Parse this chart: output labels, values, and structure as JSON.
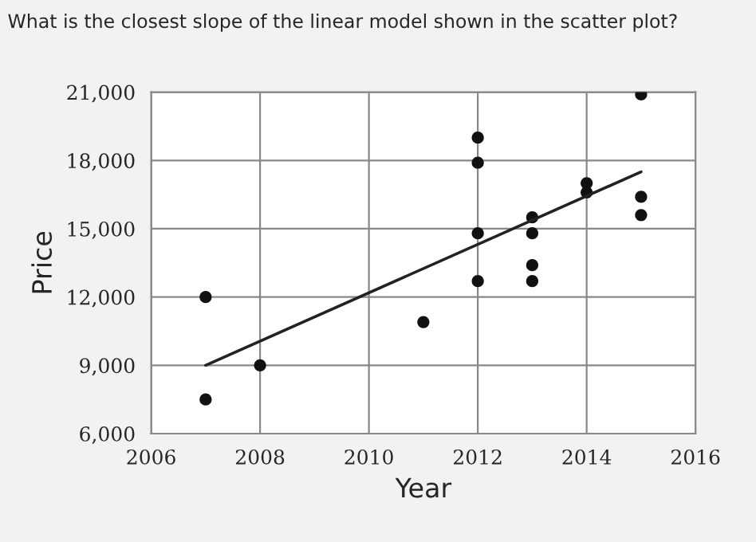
{
  "chart_data": {
    "type": "scatter",
    "title": "What is the closest slope of the linear model shown in the scatter plot?",
    "xlabel": "Year",
    "ylabel": "Price",
    "xlim": [
      2006,
      2016
    ],
    "xticks": [
      2006,
      2008,
      2010,
      2012,
      2014,
      2016
    ],
    "ylim": [
      6000,
      21000
    ],
    "yticks": [
      {
        "value": 6000,
        "label": "6,000"
      },
      {
        "value": 9000,
        "label": "9,000"
      },
      {
        "value": 12000,
        "label": "12,000"
      },
      {
        "value": 15000,
        "label": "15,000"
      },
      {
        "value": 18000,
        "label": "18,000"
      },
      {
        "value": 21000,
        "label": "21,000"
      }
    ],
    "grid": true,
    "series": [
      {
        "marker": "circle",
        "color": "#111111",
        "x": [
          2007,
          2007,
          2008,
          2011,
          2012,
          2012,
          2012,
          2012,
          2013,
          2013,
          2013,
          2013,
          2014,
          2014,
          2015,
          2015,
          2015
        ],
        "values": [
          12000,
          7500,
          9000,
          10900,
          19000,
          17900,
          14800,
          12700,
          15500,
          14800,
          13400,
          12700,
          17000,
          16600,
          20900,
          16400,
          15600
        ]
      },
      {
        "type": "line",
        "marker": "none",
        "color": "#222222",
        "x": [
          2007,
          2015
        ],
        "values": [
          9000,
          17500
        ]
      }
    ]
  }
}
